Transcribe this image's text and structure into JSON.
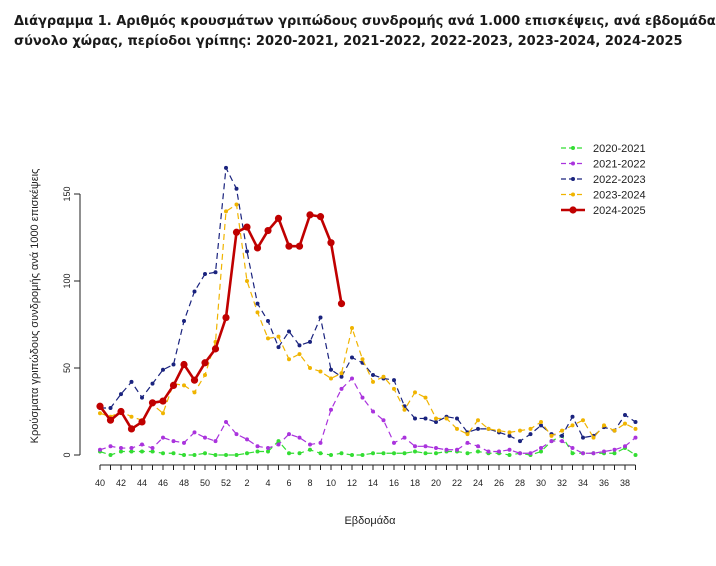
{
  "title_line1": "Διάγραμμα 1. Αριθμός κρουσμάτων γριπώδους συνδρομής ανά 1.000 επισκέψεις, ανά εβδομάδα,",
  "title_line2": "σύνολο χώρας, περίοδοι γρίπης: 2020-2021, 2021-2022, 2022-2023, 2023-2024, 2024-2025",
  "chart_data": {
    "type": "line",
    "xlabel": "Εβδομάδα",
    "ylabel": "Κρούσματα γριπώδους συνδρομής ανά 1000 επισκέψεις",
    "ylim": [
      0,
      170
    ],
    "yticks": [
      0,
      50,
      100,
      150
    ],
    "x_tick_labels": [
      "40",
      "42",
      "44",
      "46",
      "48",
      "50",
      "52",
      "2",
      "4",
      "6",
      "8",
      "10",
      "12",
      "14",
      "16",
      "18",
      "20",
      "22",
      "24",
      "26",
      "28",
      "30",
      "32",
      "34",
      "36",
      "38"
    ],
    "x_weeks": [
      "40",
      "41",
      "42",
      "43",
      "44",
      "45",
      "46",
      "47",
      "48",
      "49",
      "50",
      "51",
      "52",
      "1",
      "2",
      "3",
      "4",
      "5",
      "6",
      "7",
      "8",
      "9",
      "10",
      "11",
      "12",
      "13",
      "14",
      "15",
      "16",
      "17",
      "18",
      "19",
      "20",
      "21",
      "22",
      "23",
      "24",
      "25",
      "26",
      "27",
      "28",
      "29",
      "30",
      "31",
      "32",
      "33",
      "34",
      "35",
      "36",
      "37",
      "38",
      "39"
    ],
    "legend_position": "top-right",
    "series": [
      {
        "name": "2020-2021",
        "color": "#33dd33",
        "style": "dashed",
        "values": [
          2,
          0,
          2,
          2,
          2,
          2,
          1,
          1,
          0,
          0,
          1,
          0,
          0,
          0,
          1,
          2,
          2,
          8,
          1,
          1,
          3,
          1,
          0,
          1,
          0,
          0,
          1,
          1,
          1,
          1,
          2,
          1,
          1,
          2,
          2,
          1,
          2,
          1,
          1,
          0,
          1,
          0,
          2,
          8,
          11,
          1,
          1,
          1,
          1,
          1,
          4,
          0
        ]
      },
      {
        "name": "2021-2022",
        "color": "#aa33dd",
        "style": "dashed",
        "values": [
          3,
          5,
          4,
          4,
          6,
          4,
          10,
          8,
          7,
          13,
          10,
          8,
          19,
          12,
          9,
          5,
          4,
          6,
          12,
          10,
          6,
          7,
          26,
          38,
          44,
          33,
          25,
          20,
          7,
          10,
          5,
          5,
          4,
          3,
          3,
          7,
          5,
          2,
          2,
          3,
          1,
          1,
          4,
          8,
          8,
          4,
          1,
          1,
          2,
          3,
          5,
          10
        ]
      },
      {
        "name": "2022-2023",
        "color": "#1a237e",
        "style": "dashed",
        "values": [
          27,
          27,
          35,
          42,
          33,
          41,
          49,
          52,
          77,
          94,
          104,
          105,
          165,
          153,
          117,
          87,
          77,
          62,
          71,
          63,
          65,
          79,
          49,
          45,
          56,
          53,
          46,
          44,
          43,
          28,
          21,
          21,
          19,
          22,
          21,
          13,
          15,
          15,
          13,
          11,
          8,
          12,
          17,
          12,
          11,
          22,
          10,
          11,
          16,
          14,
          23,
          19
        ]
      },
      {
        "name": "2023-2024",
        "color": "#f0b400",
        "style": "dashed",
        "values": [
          24,
          22,
          25,
          22,
          20,
          29,
          24,
          41,
          40,
          36,
          46,
          65,
          140,
          144,
          100,
          82,
          67,
          68,
          55,
          58,
          50,
          48,
          44,
          47,
          73,
          55,
          42,
          45,
          38,
          26,
          36,
          33,
          21,
          21,
          15,
          12,
          20,
          15,
          14,
          13,
          14,
          15,
          19,
          11,
          14,
          17,
          20,
          10,
          17,
          14,
          18,
          15
        ]
      },
      {
        "name": "2024-2025",
        "color": "#c00000",
        "style": "solid",
        "values": [
          28,
          20,
          25,
          15,
          19,
          30,
          31,
          40,
          52,
          43,
          53,
          61,
          79,
          128,
          131,
          119,
          129,
          136,
          120,
          120,
          138,
          137,
          122,
          87
        ]
      }
    ]
  }
}
